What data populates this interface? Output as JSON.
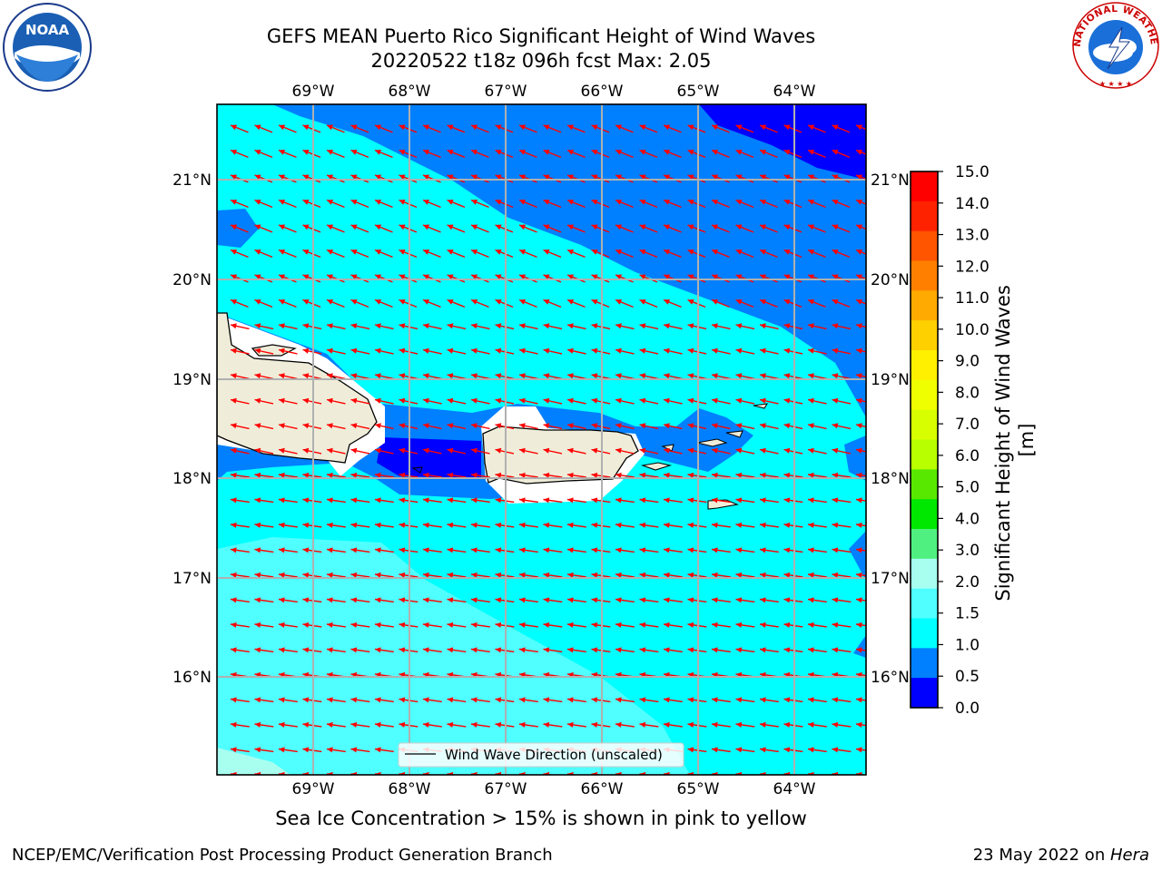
{
  "title": {
    "line1": "GEFS MEAN Puerto Rico Significant Height of Wind Waves",
    "line2": "20220522 t18z 096h fcst   Max: 2.05"
  },
  "logos": {
    "left": {
      "icon": "noaa-logo-icon",
      "text": "NOAA"
    },
    "right": {
      "icon": "nws-logo-icon",
      "text": "NATIONAL WEATHER SERVICE"
    }
  },
  "map": {
    "lon_labels": [
      "69°W",
      "68°W",
      "67°W",
      "66°W",
      "65°W",
      "64°W"
    ],
    "lat_labels": [
      "21°N",
      "20°N",
      "19°N",
      "18°N",
      "17°N",
      "16°N"
    ],
    "legend": "Wind Wave Direction (unscaled)",
    "arrow_color": "#ff0000",
    "land_color": "#efedd9"
  },
  "colorbar": {
    "label": "Significant Height of Wind Waves [m]",
    "ticks": [
      "15.0",
      "14.0",
      "13.0",
      "12.0",
      "11.0",
      "10.0",
      "9.0",
      "8.0",
      "7.0",
      "6.0",
      "5.0",
      "4.0",
      "3.0",
      "2.0",
      "1.5",
      "1.0",
      "0.5",
      "0.0"
    ],
    "colors": [
      "#ff0000",
      "#ff2200",
      "#ff5500",
      "#ff8000",
      "#ffaa00",
      "#ffd000",
      "#fff000",
      "#f0ff00",
      "#d8ff00",
      "#b8ff00",
      "#58e800",
      "#00e800",
      "#50f080",
      "#a8fff0",
      "#50ffff",
      "#00ffff",
      "#0080ff",
      "#0000ff"
    ]
  },
  "subnote": "Sea Ice Concentration > 15% is shown in pink to yellow",
  "footer": {
    "left": "NCEP/EMC/Verification Post Processing Product Generation Branch",
    "right_prefix": "23 May 2022 on ",
    "right_host": "Hera"
  }
}
